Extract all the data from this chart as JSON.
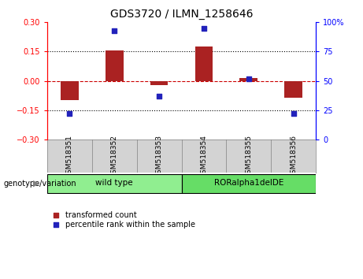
{
  "title": "GDS3720 / ILMN_1258646",
  "samples": [
    "GSM518351",
    "GSM518352",
    "GSM518353",
    "GSM518354",
    "GSM518355",
    "GSM518356"
  ],
  "transformed_count": [
    -0.1,
    0.158,
    -0.02,
    0.175,
    0.015,
    -0.085
  ],
  "percentile_rank": [
    22,
    93,
    37,
    95,
    52,
    22
  ],
  "groups": [
    {
      "label": "wild type",
      "indices": [
        0,
        1,
        2
      ],
      "color": "#90EE90"
    },
    {
      "label": "RORalpha1delDE",
      "indices": [
        3,
        4,
        5
      ],
      "color": "#66DD66"
    }
  ],
  "ylim_left": [
    -0.3,
    0.3
  ],
  "ylim_right": [
    0,
    100
  ],
  "yticks_left": [
    -0.3,
    -0.15,
    0,
    0.15,
    0.3
  ],
  "yticks_right": [
    0,
    25,
    50,
    75,
    100
  ],
  "bar_color": "#AA2222",
  "dot_color": "#2222BB",
  "zero_line_color": "#CC0000",
  "grid_line_color": "#000000",
  "background_color": "#FFFFFF",
  "sample_bg_color": "#D3D3D3",
  "group_label": "genotype/variation",
  "legend_bar_label": "transformed count",
  "legend_dot_label": "percentile rank within the sample",
  "bar_width": 0.4
}
